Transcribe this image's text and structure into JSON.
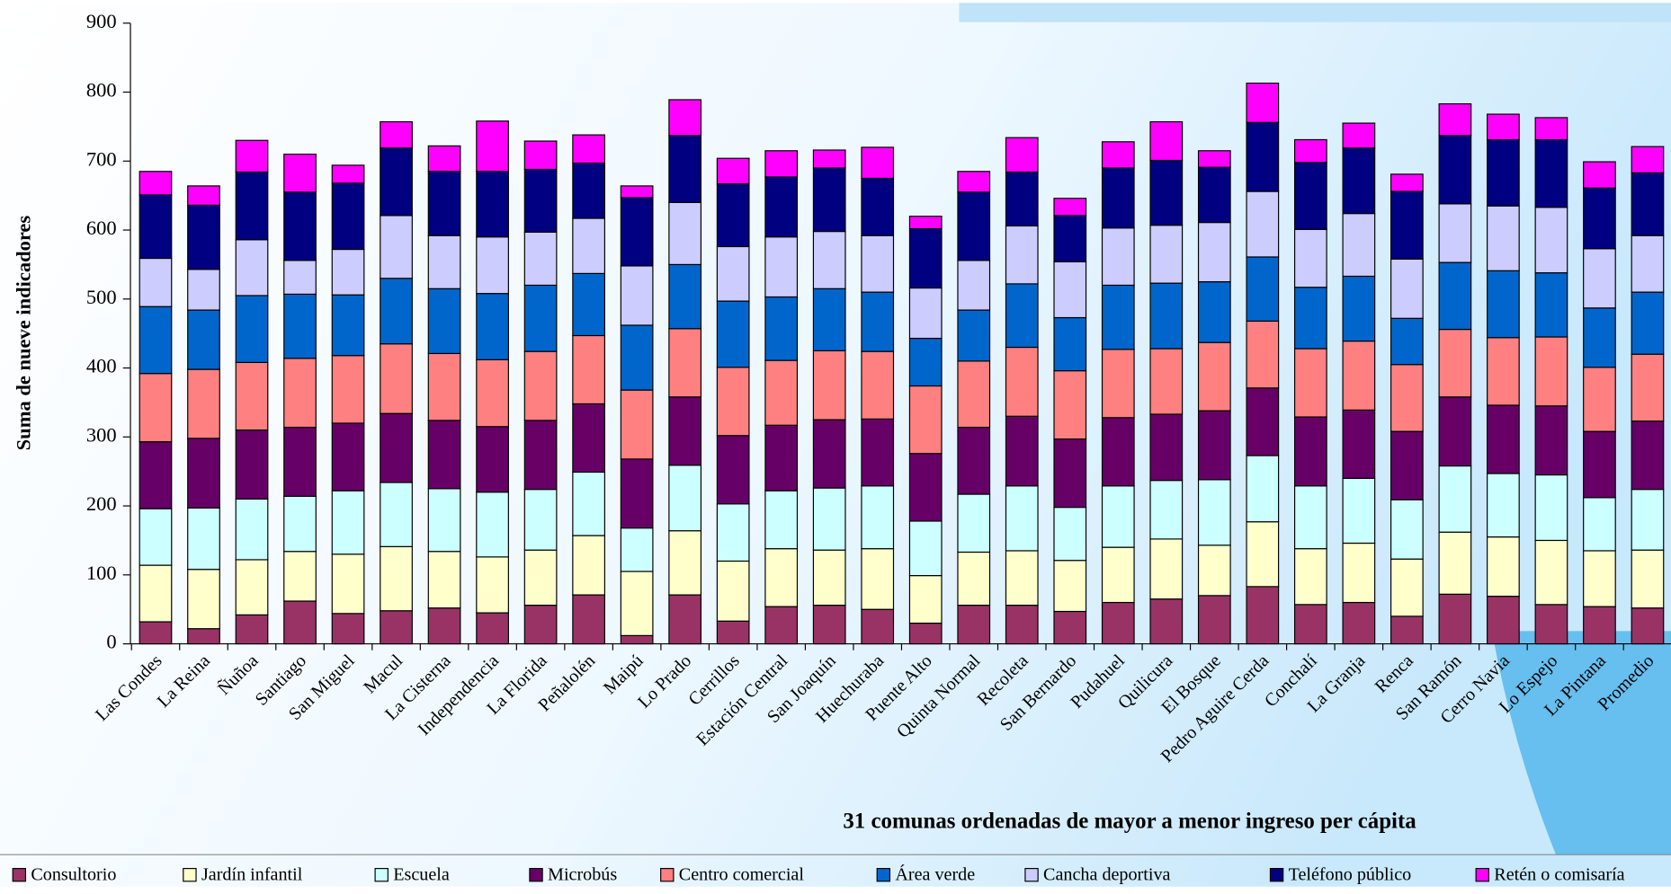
{
  "chart_data": {
    "type": "stacked_bar",
    "xlabel": "31 comunas ordenadas de mayor a menor ingreso per cápita",
    "ylabel": "Suma de nueve indicadores",
    "categories": [
      "Las Condes",
      "La Reina",
      "Ñuñoa",
      "Santiago",
      "San Miguel",
      "Macul",
      "La Cisterna",
      "Independencia",
      "La Florida",
      "Peñalolén",
      "Maipú",
      "Lo Prado",
      "Cerrillos",
      "Estación Central",
      "San Joaquín",
      "Huechuraba",
      "Puente Alto",
      "Quinta Normal",
      "Recoleta",
      "San Bernardo",
      "Pudahuel",
      "Quilicura",
      "El Bosque",
      "Pedro Aguire Cerda",
      "Conchalí",
      "La Granja",
      "Renca",
      "San Ramón",
      "Cerro Navia",
      "Lo Espejo",
      "La Pintana",
      "Promedio"
    ],
    "series": [
      {
        "name": "Consultorio",
        "color": "#993366",
        "values": [
          32,
          22,
          42,
          62,
          44,
          48,
          52,
          45,
          56,
          71,
          12,
          71,
          33,
          54,
          56,
          50,
          30,
          56,
          56,
          47,
          60,
          65,
          70,
          83,
          57,
          60,
          40,
          72,
          69,
          57,
          54,
          52
        ]
      },
      {
        "name": "Jardín infantil",
        "color": "#ffffcc",
        "values": [
          82,
          86,
          80,
          72,
          86,
          93,
          82,
          81,
          80,
          86,
          93,
          93,
          87,
          84,
          80,
          88,
          69,
          77,
          79,
          74,
          80,
          87,
          73,
          94,
          81,
          86,
          83,
          90,
          86,
          93,
          81,
          84
        ]
      },
      {
        "name": "Escuela",
        "color": "#ccffff",
        "values": [
          82,
          89,
          88,
          80,
          92,
          93,
          91,
          94,
          88,
          92,
          63,
          95,
          83,
          84,
          90,
          91,
          79,
          84,
          94,
          77,
          89,
          85,
          95,
          96,
          91,
          94,
          86,
          96,
          92,
          95,
          77,
          88
        ]
      },
      {
        "name": "Microbús",
        "color": "#660066",
        "values": [
          97,
          101,
          100,
          100,
          98,
          100,
          99,
          95,
          100,
          99,
          100,
          99,
          99,
          95,
          99,
          97,
          98,
          97,
          101,
          99,
          99,
          96,
          100,
          98,
          100,
          99,
          99,
          100,
          99,
          100,
          96,
          99
        ]
      },
      {
        "name": "Centro comercial",
        "color": "#ff8080",
        "values": [
          99,
          100,
          98,
          100,
          98,
          101,
          97,
          97,
          100,
          99,
          100,
          99,
          99,
          94,
          100,
          98,
          98,
          96,
          100,
          99,
          99,
          95,
          99,
          97,
          99,
          100,
          97,
          98,
          98,
          100,
          93,
          97
        ]
      },
      {
        "name": "Área verde",
        "color": "#0066cc",
        "values": [
          97,
          86,
          97,
          93,
          88,
          95,
          94,
          96,
          96,
          90,
          94,
          93,
          96,
          92,
          90,
          86,
          69,
          74,
          92,
          77,
          93,
          95,
          88,
          93,
          89,
          94,
          67,
          97,
          97,
          93,
          86,
          90
        ]
      },
      {
        "name": "Cancha deportiva",
        "color": "#ccccff",
        "values": [
          70,
          59,
          81,
          49,
          66,
          91,
          77,
          82,
          77,
          80,
          86,
          90,
          79,
          87,
          83,
          82,
          73,
          72,
          84,
          81,
          83,
          84,
          86,
          95,
          84,
          91,
          86,
          85,
          94,
          95,
          86,
          82
        ]
      },
      {
        "name": "Teléfono público",
        "color": "#000080",
        "values": [
          92,
          93,
          98,
          99,
          96,
          98,
          93,
          95,
          91,
          80,
          99,
          97,
          91,
          87,
          92,
          83,
          86,
          99,
          78,
          67,
          87,
          94,
          80,
          100,
          97,
          95,
          98,
          99,
          96,
          98,
          88,
          91
        ]
      },
      {
        "name": "Retén o comisaría",
        "color": "#ff00ff",
        "values": [
          34,
          28,
          46,
          55,
          26,
          38,
          37,
          73,
          41,
          41,
          17,
          52,
          37,
          38,
          26,
          45,
          18,
          30,
          50,
          25,
          38,
          56,
          24,
          57,
          33,
          36,
          25,
          46,
          37,
          32,
          38,
          38
        ]
      }
    ],
    "ylim": [
      0,
      900
    ],
    "yticks": [
      0,
      100,
      200,
      300,
      400,
      500,
      600,
      700,
      800,
      900
    ],
    "grid": false
  }
}
